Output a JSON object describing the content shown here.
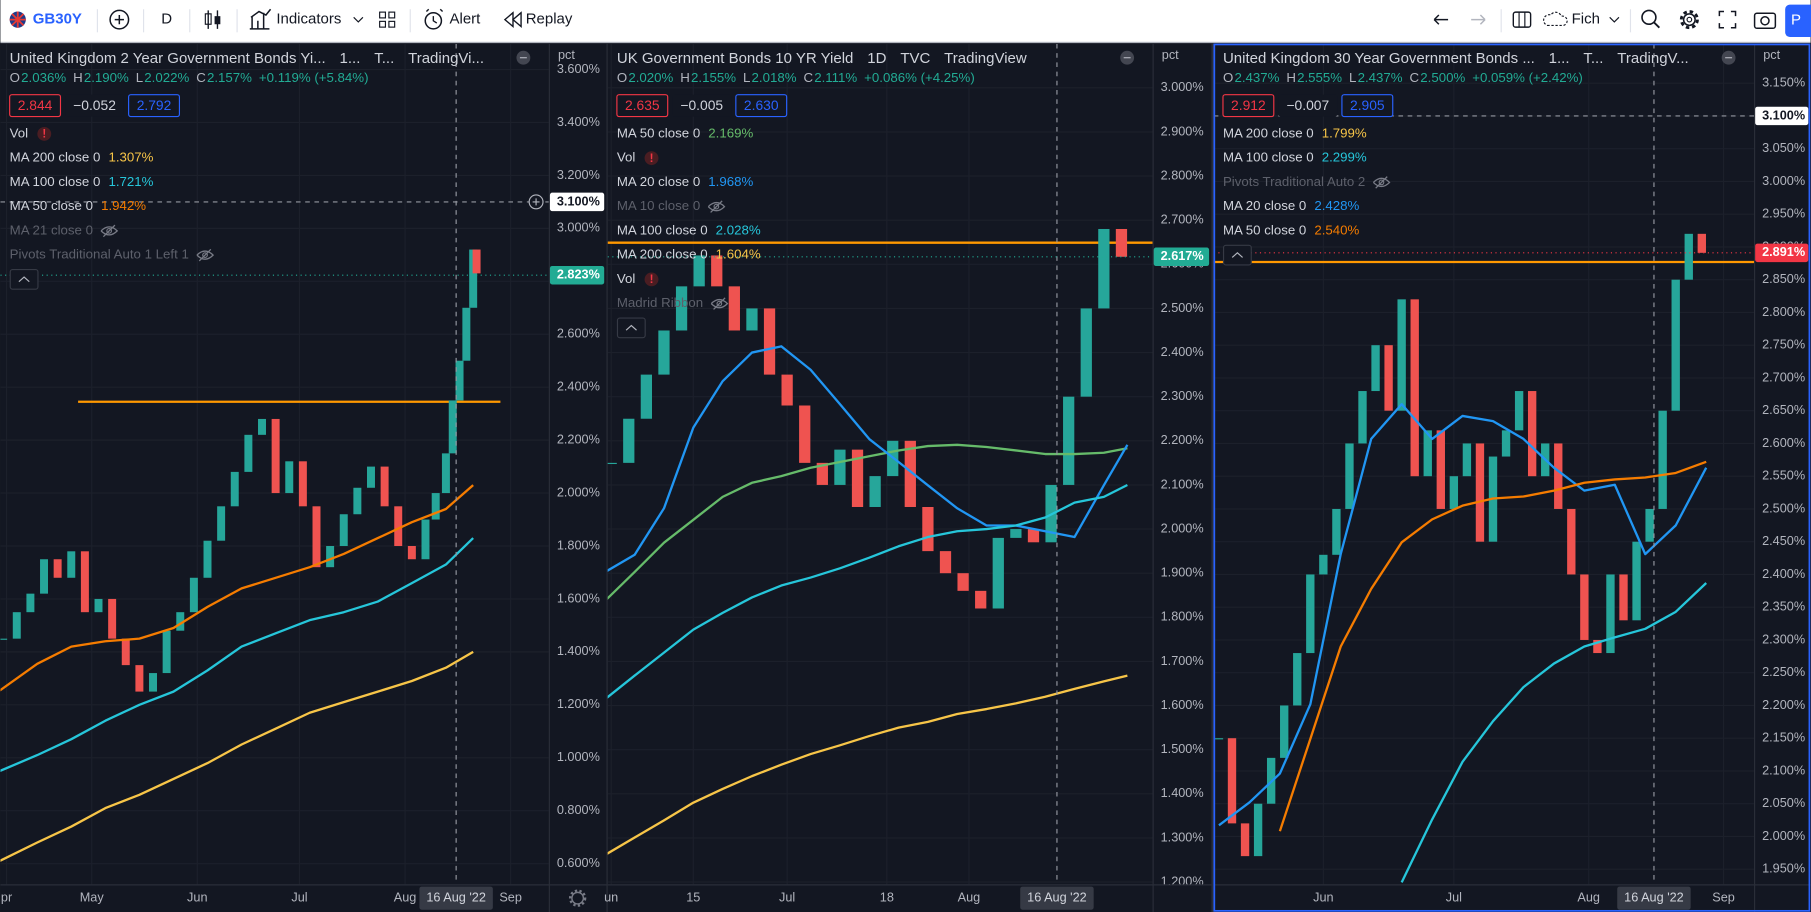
{
  "toolbar": {
    "symbol": "GB30Y",
    "interval": "D",
    "indicators": "Indicators",
    "alert": "Alert",
    "replay": "Replay",
    "layout_name": "Fich",
    "publish": "P"
  },
  "panels": [
    {
      "title": [
        "United Kingdom 2 Year Government Bonds Yi...",
        "1...",
        "T...",
        "TradingVi..."
      ],
      "ohlc": [
        [
          "O",
          "2.036%"
        ],
        [
          "H",
          "2.190%"
        ],
        [
          "L",
          "2.022%"
        ],
        [
          "C",
          "2.157%"
        ]
      ],
      "change": "+0.119% (+5.84%)",
      "badges": [
        "2.844",
        "−0.052",
        "2.792"
      ],
      "unit": "pct",
      "rows": [
        {
          "label": "Vol",
          "flag": "!"
        },
        {
          "label": "MA 200 close 0",
          "value": "1.307%",
          "color": "#f7c548",
          "values": [
            0.61,
            0.68,
            0.74,
            0.81,
            0.86,
            0.92,
            0.98,
            1.05,
            1.11,
            1.17,
            1.21,
            1.25,
            1.29,
            1.34,
            1.4
          ]
        },
        {
          "label": "MA 100 close 0",
          "value": "1.721%",
          "color": "#26c6da",
          "values": [
            0.95,
            1.01,
            1.07,
            1.14,
            1.2,
            1.25,
            1.33,
            1.42,
            1.47,
            1.52,
            1.55,
            1.59,
            1.66,
            1.73,
            1.83
          ]
        },
        {
          "label": "MA 50 close 0",
          "value": "1.942%",
          "color": "#f57c00",
          "values": [
            1.254,
            1.355,
            1.42,
            1.44,
            1.45,
            1.49,
            1.57,
            1.64,
            1.68,
            1.72,
            1.77,
            1.83,
            1.89,
            1.94,
            2.03
          ]
        },
        {
          "label": "MA 21 close 0",
          "hidden": true
        },
        {
          "label": "Pivots Traditional Auto 1 Left 1",
          "hidden": true
        }
      ],
      "x": [
        94,
        105,
        115,
        125,
        135,
        145,
        155,
        165,
        175,
        185,
        195,
        205,
        215,
        225,
        233
      ],
      "price": {
        "x": [
          95,
          99,
          103,
          107,
          111,
          115,
          119,
          123,
          127,
          131,
          135,
          139,
          143,
          147,
          151,
          155,
          159,
          163,
          167,
          171,
          175,
          179,
          183,
          187,
          191,
          195,
          199,
          203,
          207,
          211,
          215,
          219,
          222,
          225,
          227,
          229,
          231,
          233,
          234
        ],
        "values": [
          1.45,
          1.55,
          1.62,
          1.75,
          1.68,
          1.78,
          1.55,
          1.6,
          1.45,
          1.35,
          1.25,
          1.32,
          1.48,
          1.55,
          1.68,
          1.82,
          1.95,
          2.08,
          2.22,
          2.28,
          2.0,
          2.12,
          1.95,
          1.72,
          1.8,
          1.92,
          2.02,
          2.1,
          1.95,
          1.8,
          1.75,
          1.9,
          2.0,
          2.15,
          2.35,
          2.5,
          2.7,
          2.92,
          2.83
        ]
      },
      "hline": {
        "value": 2.345,
        "x": [
          117,
          241
        ]
      },
      "xlim": [
        94.2,
        255.2
      ],
      "ylim": [
        0.522,
        3.697
      ],
      "yticks": [
        {
          "value": 3.6,
          "label": "3.600%"
        },
        {
          "value": 3.4,
          "label": "3.400%"
        },
        {
          "value": 3.2,
          "label": "3.200%"
        },
        {
          "value": 3.0,
          "label": "3.000%"
        },
        {
          "value": 2.8,
          "label": "2.800%"
        },
        {
          "value": 2.6,
          "label": "2.600%"
        },
        {
          "value": 2.4,
          "label": "2.400%"
        },
        {
          "value": 2.2,
          "label": "2.200%"
        },
        {
          "value": 2.0,
          "label": "2.000%"
        },
        {
          "value": 1.8,
          "label": "1.800%"
        },
        {
          "value": 1.6,
          "label": "1.600%"
        },
        {
          "value": 1.4,
          "label": "1.400%"
        },
        {
          "value": 1.2,
          "label": "1.200%"
        },
        {
          "value": 1.0,
          "label": "1.000%"
        },
        {
          "value": 0.8,
          "label": "0.800%"
        },
        {
          "value": 0.6,
          "label": "0.600%"
        }
      ],
      "xticks": [
        {
          "value": 96,
          "label": "pr"
        },
        {
          "value": 121,
          "label": "May"
        },
        {
          "value": 152,
          "label": "Jun"
        },
        {
          "value": 182,
          "label": "Jul"
        },
        {
          "value": 213,
          "label": "Aug"
        },
        {
          "value": 244,
          "label": "Sep"
        }
      ],
      "crosshair": {
        "x": 228,
        "label": "16 Aug '22",
        "y": {
          "value": 3.1,
          "label": "3.100%"
        }
      },
      "last": {
        "value": 2.823,
        "label": "2.823%",
        "color": "#22ab94"
      }
    },
    {
      "title": [
        "UK Government Bonds 10 YR Yield",
        "1D",
        "TVC",
        "TradingView"
      ],
      "ohlc": [
        [
          "O",
          "2.020%"
        ],
        [
          "H",
          "2.155%"
        ],
        [
          "L",
          "2.018%"
        ],
        [
          "C",
          "2.111%"
        ]
      ],
      "change": "+0.086% (+4.25%)",
      "badges": [
        "2.635",
        "−0.005",
        "2.630"
      ],
      "unit": "pct",
      "rows": [
        {
          "label": "MA 50 close 0",
          "value": "2.169%",
          "color": "#66bb6a",
          "values": [
            1.838,
            1.903,
            1.969,
            2.021,
            2.073,
            2.105,
            2.12,
            2.139,
            2.152,
            2.165,
            2.178,
            2.188,
            2.191,
            2.186,
            2.178,
            2.17,
            2.17,
            2.173,
            2.183
          ]
        },
        {
          "label": "Vol",
          "flag": "!"
        },
        {
          "label": "MA 20 close 0",
          "value": "1.968%",
          "color": "#2196f3",
          "values": [
            1.903,
            1.942,
            2.047,
            2.23,
            2.335,
            2.4,
            2.414,
            2.361,
            2.283,
            2.204,
            2.152,
            2.099,
            2.047,
            2.008,
            2.008,
            1.995,
            1.982,
            2.099,
            2.191
          ]
        },
        {
          "label": "MA 10 close 0",
          "hidden": true
        },
        {
          "label": "MA 100 close 0",
          "value": "2.028%",
          "color": "#26c6da",
          "values": [
            1.615,
            1.668,
            1.72,
            1.772,
            1.81,
            1.845,
            1.872,
            1.89,
            1.911,
            1.935,
            1.961,
            1.982,
            1.995,
            2.0,
            2.008,
            2.026,
            2.06,
            2.073,
            2.1
          ]
        },
        {
          "label": "MA 200 close 0",
          "value": "1.604%",
          "color": "#f7c548",
          "values": [
            1.262,
            1.301,
            1.34,
            1.38,
            1.411,
            1.44,
            1.466,
            1.49,
            1.51,
            1.531,
            1.55,
            1.563,
            1.581,
            1.592,
            1.605,
            1.62,
            1.638,
            1.655,
            1.668
          ]
        },
        {
          "label": "Vol",
          "flag": "!"
        },
        {
          "label": "Madrid Ribbon",
          "hidden": true
        }
      ],
      "x": [
        151,
        156,
        161,
        166,
        171,
        176,
        181,
        186,
        191,
        196,
        201,
        206,
        211,
        216,
        221,
        226,
        231,
        236,
        240
      ],
      "price": {
        "x": [
          152,
          155,
          158,
          161,
          164,
          167,
          170,
          173,
          176,
          179,
          182,
          185,
          188,
          191,
          194,
          197,
          200,
          203,
          206,
          209,
          212,
          215,
          218,
          221,
          224,
          227,
          230,
          233,
          236,
          239
        ],
        "values": [
          2.15,
          2.25,
          2.35,
          2.45,
          2.55,
          2.62,
          2.55,
          2.45,
          2.5,
          2.35,
          2.28,
          2.15,
          2.1,
          2.18,
          2.05,
          2.12,
          2.2,
          2.05,
          1.95,
          1.9,
          1.86,
          1.82,
          1.98,
          2.0,
          1.97,
          2.1,
          2.3,
          2.5,
          2.68,
          2.617
        ]
      },
      "hline": {
        "value": 2.649,
        "x": [
          151.4,
          244.3
        ]
      },
      "xlim": [
        151.4,
        244.3
      ],
      "ylim": [
        1.195,
        3.0995
      ],
      "yticks": [
        {
          "value": 3.0,
          "label": "3.000%"
        },
        {
          "value": 2.9,
          "label": "2.900%"
        },
        {
          "value": 2.8,
          "label": "2.800%"
        },
        {
          "value": 2.7,
          "label": "2.700%"
        },
        {
          "value": 2.6,
          "label": "2.600%"
        },
        {
          "value": 2.5,
          "label": "2.500%"
        },
        {
          "value": 2.4,
          "label": "2.400%"
        },
        {
          "value": 2.3,
          "label": "2.300%"
        },
        {
          "value": 2.2,
          "label": "2.200%"
        },
        {
          "value": 2.1,
          "label": "2.100%"
        },
        {
          "value": 2.0,
          "label": "2.000%"
        },
        {
          "value": 1.9,
          "label": "1.900%"
        },
        {
          "value": 1.8,
          "label": "1.800%"
        },
        {
          "value": 1.7,
          "label": "1.700%"
        },
        {
          "value": 1.6,
          "label": "1.600%"
        },
        {
          "value": 1.5,
          "label": "1.500%"
        },
        {
          "value": 1.4,
          "label": "1.400%"
        },
        {
          "value": 1.3,
          "label": "1.300%"
        },
        {
          "value": 1.2,
          "label": "1.200%"
        }
      ],
      "xticks": [
        {
          "value": 152,
          "label": "un"
        },
        {
          "value": 166,
          "label": "15"
        },
        {
          "value": 182,
          "label": "Jul"
        },
        {
          "value": 199,
          "label": "18"
        },
        {
          "value": 213,
          "label": "Aug"
        }
      ],
      "crosshair": {
        "x": 228,
        "label": "16 Aug '22"
      },
      "last": {
        "value": 2.617,
        "label": "2.617%",
        "color": "#22ab94"
      }
    },
    {
      "title": [
        "United Kingdom 30 Year Government Bonds ...",
        "1...",
        "T...",
        "TradingV..."
      ],
      "ohlc": [
        [
          "O",
          "2.437%"
        ],
        [
          "H",
          "2.555%"
        ],
        [
          "L",
          "2.437%"
        ],
        [
          "C",
          "2.500%"
        ]
      ],
      "change": "+0.059% (+2.42%)",
      "badges": [
        "2.912",
        "−0.007",
        "2.905"
      ],
      "unit": "pct",
      "rows": [
        {
          "label": "MA 200 close 0",
          "value": "1.799%",
          "color": "#f7c548"
        },
        {
          "label": "MA 100 close 0",
          "value": "2.299%",
          "color": "#26c6da",
          "values": [
            null,
            null,
            null,
            null,
            null,
            null,
            1.93,
            2.026,
            2.114,
            2.176,
            2.228,
            2.264,
            2.29,
            2.304,
            2.317,
            2.343,
            2.387
          ]
        },
        {
          "label": "Pivots Traditional Auto 2",
          "hidden": true
        },
        {
          "label": "MA 20 close 0",
          "value": "2.428%",
          "color": "#2196f3",
          "values": [
            2.017,
            2.052,
            2.096,
            2.202,
            2.431,
            2.607,
            2.66,
            2.607,
            2.642,
            2.634,
            2.607,
            2.563,
            2.528,
            2.537,
            2.431,
            2.475,
            2.563
          ]
        },
        {
          "label": "MA 50 close 0",
          "value": "2.540%",
          "color": "#f57c00",
          "values": [
            null,
            null,
            2.008,
            2.149,
            2.29,
            2.378,
            2.449,
            2.484,
            2.505,
            2.516,
            2.519,
            2.528,
            2.54,
            2.545,
            2.548,
            2.555,
            2.572
          ]
        }
      ],
      "x": [
        128,
        135,
        142,
        149,
        156,
        163,
        170,
        177,
        184,
        191,
        198,
        205,
        212,
        219,
        226,
        233,
        240
      ],
      "price": {
        "x": [
          128,
          131,
          134,
          137,
          140,
          143,
          146,
          149,
          152,
          155,
          158,
          161,
          164,
          167,
          170,
          173,
          176,
          179,
          182,
          185,
          188,
          191,
          194,
          197,
          200,
          203,
          206,
          209,
          212,
          215,
          218,
          221,
          224,
          227,
          230,
          233,
          236,
          239
        ],
        "values": [
          2.15,
          2.02,
          1.97,
          2.05,
          2.12,
          2.2,
          2.28,
          2.4,
          2.43,
          2.5,
          2.6,
          2.68,
          2.75,
          2.65,
          2.82,
          2.55,
          2.62,
          2.5,
          2.55,
          2.6,
          2.45,
          2.58,
          2.62,
          2.68,
          2.55,
          2.6,
          2.5,
          2.4,
          2.3,
          2.28,
          2.4,
          2.33,
          2.45,
          2.5,
          2.65,
          2.85,
          2.92,
          2.891
        ]
      },
      "hline": {
        "value": 2.877,
        "x": [
          126.8,
          251
        ]
      },
      "xlim": [
        126.8,
        251
      ],
      "ylim": [
        1.927,
        3.21
      ],
      "yticks": [
        {
          "value": 3.15,
          "label": "3.150%"
        },
        {
          "value": 3.1,
          "label": "3.100%"
        },
        {
          "value": 3.05,
          "label": "3.050%"
        },
        {
          "value": 3.0,
          "label": "3.000%"
        },
        {
          "value": 2.95,
          "label": "2.950%"
        },
        {
          "value": 2.9,
          "label": "2.900%"
        },
        {
          "value": 2.85,
          "label": "2.850%"
        },
        {
          "value": 2.8,
          "label": "2.800%"
        },
        {
          "value": 2.75,
          "label": "2.750%"
        },
        {
          "value": 2.7,
          "label": "2.700%"
        },
        {
          "value": 2.65,
          "label": "2.650%"
        },
        {
          "value": 2.6,
          "label": "2.600%"
        },
        {
          "value": 2.55,
          "label": "2.550%"
        },
        {
          "value": 2.5,
          "label": "2.500%"
        },
        {
          "value": 2.45,
          "label": "2.450%"
        },
        {
          "value": 2.4,
          "label": "2.400%"
        },
        {
          "value": 2.35,
          "label": "2.350%"
        },
        {
          "value": 2.3,
          "label": "2.300%"
        },
        {
          "value": 2.25,
          "label": "2.250%"
        },
        {
          "value": 2.2,
          "label": "2.200%"
        },
        {
          "value": 2.15,
          "label": "2.150%"
        },
        {
          "value": 2.1,
          "label": "2.100%"
        },
        {
          "value": 2.05,
          "label": "2.050%"
        },
        {
          "value": 2.0,
          "label": "2.000%"
        },
        {
          "value": 1.95,
          "label": "1.950%"
        }
      ],
      "xticks": [
        {
          "value": 152,
          "label": "Jun"
        },
        {
          "value": 182,
          "label": "Jul"
        },
        {
          "value": 213,
          "label": "Aug"
        },
        {
          "value": 244,
          "label": "Sep"
        }
      ],
      "crosshair": {
        "x": 228,
        "label": "16 Aug '22",
        "y": {
          "value": 3.1,
          "label": "3.100%"
        }
      },
      "last": {
        "value": 2.891,
        "label": "2.891%",
        "color": "#f23645"
      }
    }
  ]
}
